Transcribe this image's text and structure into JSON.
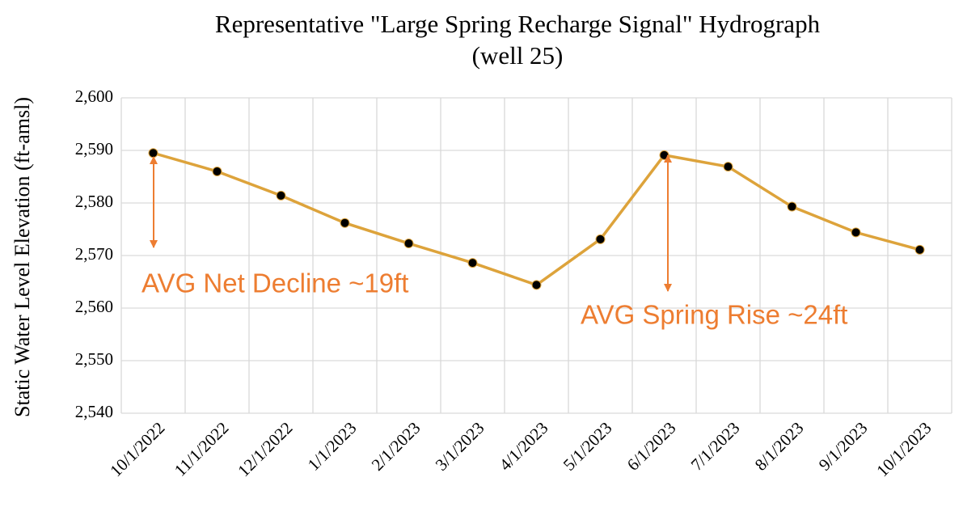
{
  "chart_data": {
    "type": "line",
    "title": [
      "Representative \"Large Spring Recharge Signal\" Hydrograph",
      "(well 25)"
    ],
    "y_label": "Static Water Level  Elevation (ft-amsl)",
    "categories": [
      "10/1/2022",
      "11/1/2022",
      "12/1/2022",
      "1/1/2023",
      "2/1/2023",
      "3/1/2023",
      "4/1/2023",
      "5/1/2023",
      "6/1/2023",
      "7/1/2023",
      "8/1/2023",
      "9/1/2023",
      "10/1/2023"
    ],
    "series": [
      {
        "name": "well 25",
        "color": "#DDA33B",
        "marker_color": "#000000",
        "values": [
          2589.5,
          2586,
          2581.4,
          2576.2,
          2572.3,
          2568.6,
          2564.4,
          2573.1,
          2589.1,
          2586.9,
          2579.3,
          2574.4,
          2571.1
        ]
      }
    ],
    "ylim": [
      2540,
      2600
    ],
    "yticks": [
      {
        "value": 2540,
        "label": "2,540"
      },
      {
        "value": 2550,
        "label": "2,550"
      },
      {
        "value": 2560,
        "label": "2,560"
      },
      {
        "value": 2570,
        "label": "2,570"
      },
      {
        "value": 2580,
        "label": "2,580"
      },
      {
        "value": 2590,
        "label": "2,590"
      },
      {
        "value": 2600,
        "label": "2,600"
      }
    ],
    "grid": true,
    "annotations": [
      "AVG Net Decline ~19ft",
      "AVG Spring Rise ~24ft"
    ]
  }
}
